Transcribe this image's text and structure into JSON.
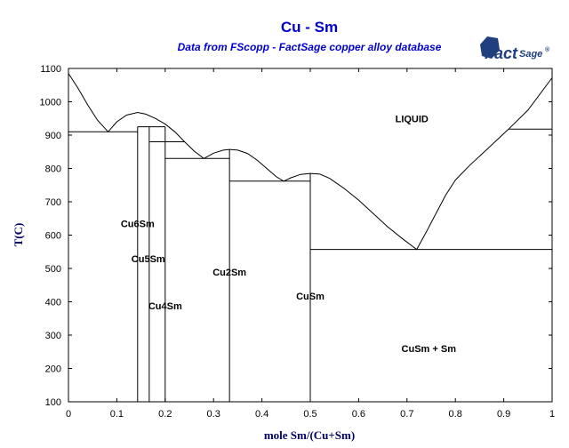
{
  "header": {
    "title": "Cu - Sm",
    "subtitle": "Data from FScopp - FactSage copper alloy database",
    "logo_main": "Fact",
    "logo_sub": "Sage",
    "logo_mark": "®"
  },
  "colors": {
    "title": "#0000cc",
    "axis_label": "#000066",
    "lines": "#000000",
    "logo": "#1f3f7f"
  },
  "chart_data": {
    "type": "line",
    "title": "Cu - Sm",
    "subtitle": "Data from FScopp - FactSage copper alloy database",
    "xlabel": "mole Sm/(Cu+Sm)",
    "ylabel": "T(C)",
    "xlim": [
      0,
      1
    ],
    "ylim": [
      100,
      1100
    ],
    "xticks": [
      0,
      0.1,
      0.2,
      0.3,
      0.4,
      0.5,
      0.6,
      0.7,
      0.8,
      0.9,
      1
    ],
    "xtick_labels": [
      "0",
      "0.1",
      "0.2",
      "0.3",
      "0.4",
      "0.5",
      "0.6",
      "0.7",
      "0.8",
      "0.9",
      "1"
    ],
    "yticks": [
      100,
      200,
      300,
      400,
      500,
      600,
      700,
      800,
      900,
      1000,
      1100
    ],
    "ytick_labels": [
      "100",
      "200",
      "300",
      "400",
      "500",
      "600",
      "700",
      "800",
      "900",
      "1000",
      "1100"
    ],
    "grid": false,
    "liquidus": [
      [
        0,
        1085
      ],
      [
        0.02,
        1040
      ],
      [
        0.04,
        990
      ],
      [
        0.06,
        945
      ],
      [
        0.082,
        910
      ],
      [
        0.1,
        940
      ],
      [
        0.12,
        960
      ],
      [
        0.143,
        968
      ],
      [
        0.16,
        963
      ],
      [
        0.18,
        950
      ],
      [
        0.2,
        933
      ],
      [
        0.22,
        910
      ],
      [
        0.24,
        880
      ],
      [
        0.26,
        852
      ],
      [
        0.28,
        830
      ],
      [
        0.3,
        846
      ],
      [
        0.32,
        855
      ],
      [
        0.333,
        857
      ],
      [
        0.35,
        855
      ],
      [
        0.37,
        845
      ],
      [
        0.39,
        825
      ],
      [
        0.41,
        800
      ],
      [
        0.43,
        775
      ],
      [
        0.445,
        762
      ],
      [
        0.46,
        772
      ],
      [
        0.48,
        782
      ],
      [
        0.5,
        785
      ],
      [
        0.52,
        783
      ],
      [
        0.54,
        770
      ],
      [
        0.57,
        740
      ],
      [
        0.6,
        705
      ],
      [
        0.63,
        665
      ],
      [
        0.66,
        625
      ],
      [
        0.69,
        590
      ],
      [
        0.72,
        557
      ],
      [
        0.74,
        610
      ],
      [
        0.76,
        665
      ],
      [
        0.78,
        720
      ],
      [
        0.8,
        765
      ],
      [
        0.83,
        810
      ],
      [
        0.86,
        850
      ],
      [
        0.91,
        918
      ],
      [
        0.95,
        975
      ],
      [
        1,
        1072
      ]
    ],
    "horizontal_lines": [
      {
        "x": [
          0,
          0.143
        ],
        "y": 910
      },
      {
        "x": [
          0.143,
          0.2
        ],
        "y": 925
      },
      {
        "x": [
          0.167,
          0.24
        ],
        "y": 880
      },
      {
        "x": [
          0.2,
          0.333
        ],
        "y": 830
      },
      {
        "x": [
          0.333,
          0.5
        ],
        "y": 762
      },
      {
        "x": [
          0.5,
          1
        ],
        "y": 557
      },
      {
        "x": [
          0.91,
          1
        ],
        "y": 918
      }
    ],
    "vertical_lines": [
      {
        "x": 0.143,
        "y": [
          100,
          925
        ]
      },
      {
        "x": 0.167,
        "y": [
          100,
          925
        ]
      },
      {
        "x": 0.2,
        "y": [
          100,
          925
        ]
      },
      {
        "x": 0.333,
        "y": [
          100,
          857
        ]
      },
      {
        "x": 0.5,
        "y": [
          100,
          785
        ]
      }
    ],
    "annotations": [
      {
        "text": "LIQUID",
        "x": 0.71,
        "y": 950
      },
      {
        "text": "Cu6Sm",
        "x": 0.143,
        "y": 635
      },
      {
        "text": "Cu5Sm",
        "x": 0.165,
        "y": 530
      },
      {
        "text": "Cu4Sm",
        "x": 0.2,
        "y": 388
      },
      {
        "text": "Cu2Sm",
        "x": 0.333,
        "y": 490
      },
      {
        "text": "CuSm",
        "x": 0.5,
        "y": 418
      },
      {
        "text": "CuSm + Sm",
        "x": 0.745,
        "y": 260
      }
    ]
  }
}
